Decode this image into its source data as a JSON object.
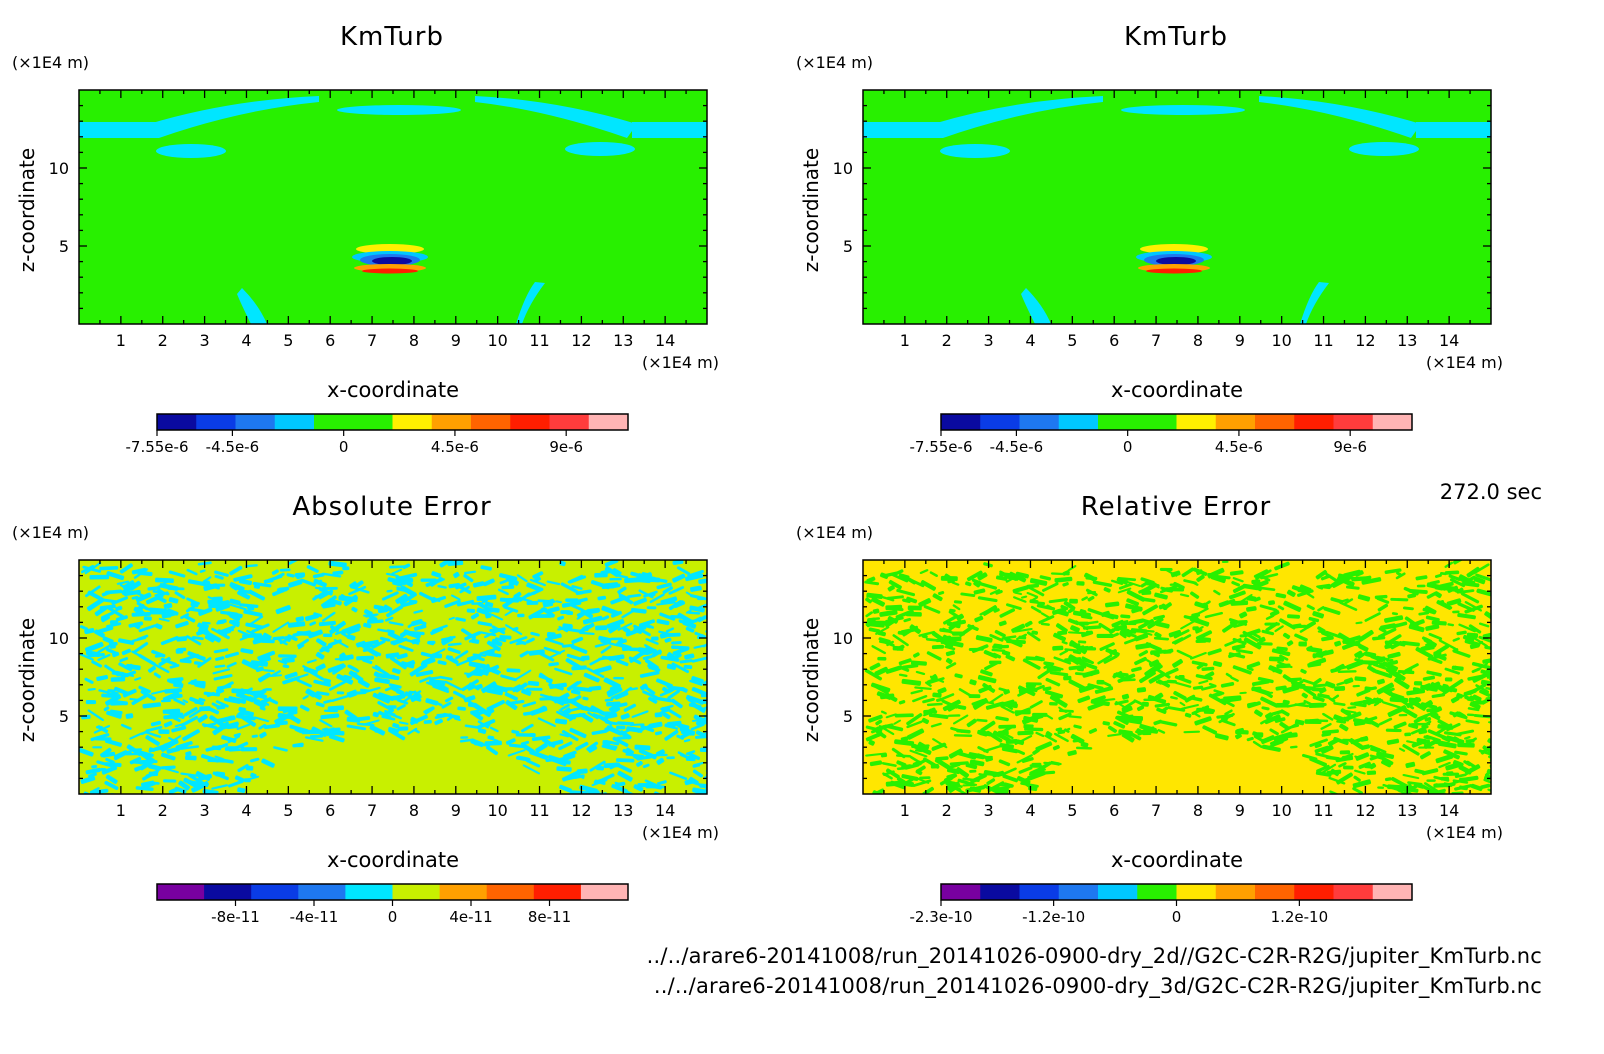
{
  "figure": {
    "time_label": "272.0 sec",
    "footer_lines": [
      "../../arare6-20141008/run_20141026-0900-dry_2d//G2C-C2R-R2G/jupiter_KmTurb.nc",
      "../../arare6-20141008/run_20141026-0900-dry_3d/G2C-C2R-R2G/jupiter_KmTurb.nc"
    ]
  },
  "chart_data": [
    {
      "type": "heatmap",
      "title": "KmTurb",
      "xlabel": "x-coordinate",
      "ylabel": "z-coordinate",
      "x_unit": "(×1E4 m)",
      "y_unit": "(×1E4 m)",
      "xlim": [
        0,
        15
      ],
      "ylim": [
        0,
        15
      ],
      "xticks": [
        1,
        2,
        3,
        4,
        5,
        6,
        7,
        8,
        9,
        10,
        11,
        12,
        13,
        14
      ],
      "yticks": [
        5,
        10
      ],
      "pattern": "field",
      "colorbar": {
        "colors": [
          "#0a0aa0",
          "#0a3ce6",
          "#1e78f0",
          "#00c8ff",
          "#28f000",
          "#28f000",
          "#fff000",
          "#ffa000",
          "#ff6400",
          "#ff1e00",
          "#ff3c3c",
          "#ffb4b4"
        ],
        "tick_labels": [
          "-7.55e-6",
          "-4.5e-6",
          "0",
          "4.5e-6",
          "9e-6"
        ],
        "tick_values": [
          -7.55e-06,
          -4.5e-06,
          0,
          4.5e-06,
          9e-06
        ],
        "range": [
          -7.55e-06,
          1.15e-05
        ]
      }
    },
    {
      "type": "heatmap",
      "title": "KmTurb",
      "xlabel": "x-coordinate",
      "ylabel": "z-coordinate",
      "x_unit": "(×1E4 m)",
      "y_unit": "(×1E4 m)",
      "xlim": [
        0,
        15
      ],
      "ylim": [
        0,
        15
      ],
      "xticks": [
        1,
        2,
        3,
        4,
        5,
        6,
        7,
        8,
        9,
        10,
        11,
        12,
        13,
        14
      ],
      "yticks": [
        5,
        10
      ],
      "pattern": "field",
      "colorbar": {
        "colors": [
          "#0a0aa0",
          "#0a3ce6",
          "#1e78f0",
          "#00c8ff",
          "#28f000",
          "#28f000",
          "#fff000",
          "#ffa000",
          "#ff6400",
          "#ff1e00",
          "#ff3c3c",
          "#ffb4b4"
        ],
        "tick_labels": [
          "-7.55e-6",
          "-4.5e-6",
          "0",
          "4.5e-6",
          "9e-6"
        ],
        "tick_values": [
          -7.55e-06,
          -4.5e-06,
          0,
          4.5e-06,
          9e-06
        ],
        "range": [
          -7.55e-06,
          1.15e-05
        ]
      }
    },
    {
      "type": "heatmap",
      "title": "Absolute Error",
      "xlabel": "x-coordinate",
      "ylabel": "z-coordinate",
      "x_unit": "(×1E4 m)",
      "y_unit": "(×1E4 m)",
      "xlim": [
        0,
        15
      ],
      "ylim": [
        0,
        15
      ],
      "xticks": [
        1,
        2,
        3,
        4,
        5,
        6,
        7,
        8,
        9,
        10,
        11,
        12,
        13,
        14
      ],
      "yticks": [
        5,
        10
      ],
      "pattern": "noise",
      "background_color": "#c8f000",
      "noise_color": "#00e6ff",
      "colorbar": {
        "colors": [
          "#7800a0",
          "#0a0aa0",
          "#0a3ce6",
          "#1e78f0",
          "#00e6ff",
          "#c8f000",
          "#ffa000",
          "#ff6400",
          "#ff1e00",
          "#ffb4b4"
        ],
        "tick_labels": [
          "-8e-11",
          "-4e-11",
          "0",
          "4e-11",
          "8e-11"
        ],
        "tick_values": [
          -8e-11,
          -4e-11,
          0,
          4e-11,
          8e-11
        ],
        "range": [
          -1.2e-10,
          1.2e-10
        ]
      }
    },
    {
      "type": "heatmap",
      "title": "Relative Error",
      "xlabel": "x-coordinate",
      "ylabel": "z-coordinate",
      "x_unit": "(×1E4 m)",
      "y_unit": "(×1E4 m)",
      "xlim": [
        0,
        15
      ],
      "ylim": [
        0,
        15
      ],
      "xticks": [
        1,
        2,
        3,
        4,
        5,
        6,
        7,
        8,
        9,
        10,
        11,
        12,
        13,
        14
      ],
      "yticks": [
        5,
        10
      ],
      "pattern": "noise",
      "background_color": "#ffe600",
      "noise_color": "#28f000",
      "colorbar": {
        "colors": [
          "#7800a0",
          "#0a0aa0",
          "#0a3ce6",
          "#1e78f0",
          "#00c8ff",
          "#28f000",
          "#ffe600",
          "#ffa000",
          "#ff6400",
          "#ff1e00",
          "#ff3c3c",
          "#ffb4b4"
        ],
        "tick_labels": [
          "-2.3e-10",
          "-1.2e-10",
          "0",
          "1.2e-10"
        ],
        "tick_values": [
          -2.3e-10,
          -1.2e-10,
          0,
          1.2e-10
        ],
        "range": [
          -2.3e-10,
          2.3e-10
        ]
      }
    }
  ]
}
